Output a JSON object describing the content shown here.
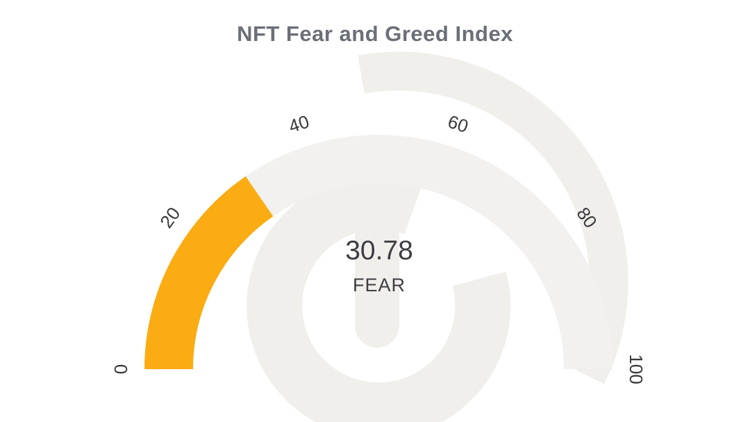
{
  "chart_data": {
    "type": "gauge",
    "title": "NFT Fear and Greed Index",
    "value": 30.78,
    "value_text": "30.78",
    "status_label": "FEAR",
    "min": 0,
    "max": 100,
    "ticks": [
      0,
      20,
      40,
      60,
      80,
      100
    ],
    "angle_span_degrees": 180,
    "legend": "none",
    "grid": false,
    "colors": {
      "value_arc": "#FBAC12",
      "track": "#F2F1EF",
      "watermark": "#F0EFEC",
      "title_text": "#6B6F78",
      "value_text": "#3D3D42",
      "tick_text": "#3A3A3E"
    }
  }
}
